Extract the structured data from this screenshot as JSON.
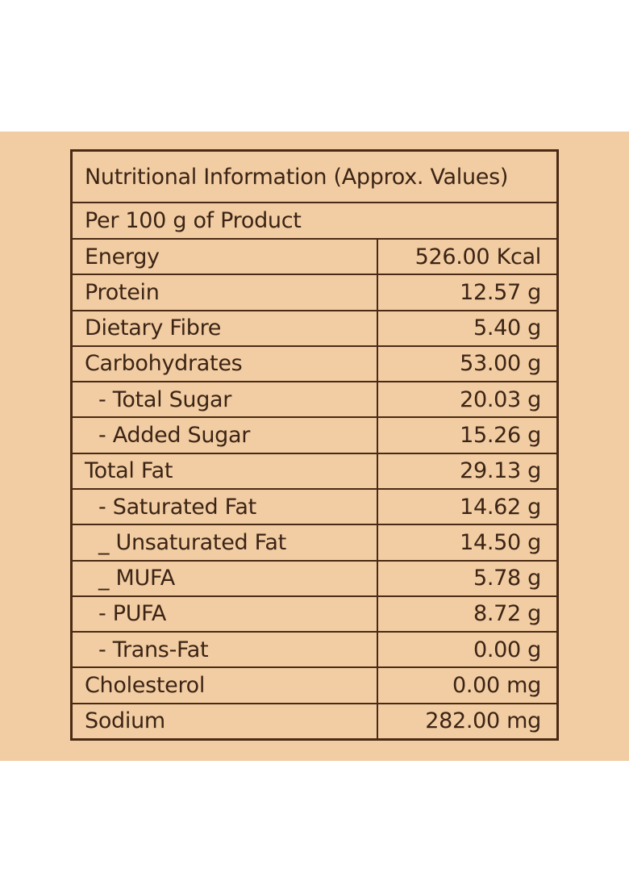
{
  "table": {
    "title": "Nutritional Information (Approx. Values)",
    "subtitle": "Per 100 g of Product",
    "rows": [
      [
        "Energy",
        "526.00 Kcal"
      ],
      [
        "Protein",
        "12.57 g"
      ],
      [
        "Dietary Fibre",
        "5.40 g"
      ],
      [
        "Carbohydrates",
        "53.00 g"
      ],
      [
        "- Total Sugar",
        "20.03 g"
      ],
      [
        "- Added Sugar",
        "15.26 g"
      ],
      [
        "Total Fat",
        "29.13 g"
      ],
      [
        "- Saturated Fat",
        "14.62 g"
      ],
      [
        "_ Unsaturated Fat",
        "14.50 g"
      ],
      [
        "_ MUFA",
        "5.78 g"
      ],
      [
        "- PUFA",
        "8.72 g"
      ],
      [
        "- Trans-Fat",
        "0.00 g"
      ],
      [
        "Cholesterol",
        "0.00 mg"
      ],
      [
        "Sodium",
        "282.00 mg"
      ]
    ]
  }
}
